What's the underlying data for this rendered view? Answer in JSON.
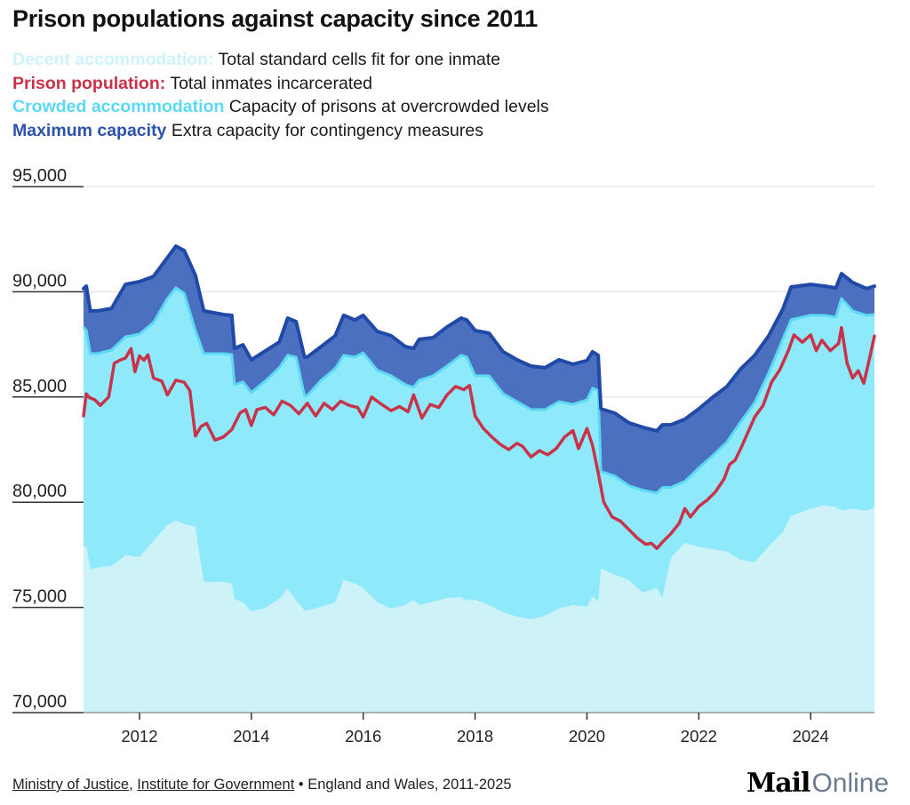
{
  "title": "Prison populations against capacity since 2011",
  "legend": [
    {
      "key": "Decent accommodation:",
      "desc": "Total standard cells fit for one inmate",
      "color": "#cdf3f8"
    },
    {
      "key": "Prison population:",
      "desc": "Total inmates incarcerated",
      "color": "#c8334a"
    },
    {
      "key": "Crowded accommodation",
      "desc": "Capacity of prisons at overcrowded levels",
      "color": "#5cd8f2"
    },
    {
      "key": "Maximum capacity",
      "desc": "Extra capacity for contingency measures",
      "color": "#2b52ad"
    }
  ],
  "footer": {
    "source1": "Ministry of Justice",
    "sep1": ", ",
    "source2": "Institute for Government",
    "note": " • England and Wales, 2011-2025"
  },
  "logo": {
    "mail": "Mail",
    "online": "Online"
  },
  "chart_data": {
    "type": "area",
    "title": "Prison populations against capacity since 2011",
    "xlabel": "",
    "ylabel": "",
    "xlim": [
      2011.0,
      2025.14
    ],
    "ylim": [
      70000,
      95000
    ],
    "yticks": [
      70000,
      75000,
      80000,
      85000,
      90000,
      95000
    ],
    "ytick_labels": [
      "70,000",
      "75,000",
      "80,000",
      "85,000",
      "90,000",
      "95,000"
    ],
    "xticks": [
      2012,
      2014,
      2016,
      2018,
      2020,
      2022,
      2024
    ],
    "xtick_labels": [
      "2012",
      "2014",
      "2016",
      "2018",
      "2020",
      "2022",
      "2024"
    ],
    "grid": true,
    "colors": {
      "decent": "#cdf3f8",
      "crowded": "#8eeafa",
      "crowded_edge": "#5cd8f2",
      "maximum": "#4a70bf",
      "maximum_edge": "#2149a8",
      "population": "#c8334a",
      "grid": "#e3e3e3",
      "axis": "#333333"
    },
    "series": [
      {
        "name": "Maximum capacity",
        "x": [
          2011.0,
          2011.05,
          2011.12,
          2011.25,
          2011.5,
          2011.75,
          2012.0,
          2012.25,
          2012.5,
          2012.65,
          2012.8,
          2013.0,
          2013.15,
          2013.5,
          2013.65,
          2013.7,
          2013.85,
          2014.0,
          2014.25,
          2014.5,
          2014.65,
          2014.8,
          2014.95,
          2015.0,
          2015.25,
          2015.5,
          2015.65,
          2015.85,
          2016.0,
          2016.25,
          2016.5,
          2016.75,
          2016.9,
          2017.0,
          2017.25,
          2017.5,
          2017.75,
          2017.85,
          2018.0,
          2018.25,
          2018.5,
          2018.75,
          2019.0,
          2019.25,
          2019.5,
          2019.75,
          2020.0,
          2020.1,
          2020.2,
          2020.25,
          2020.5,
          2020.75,
          2021.0,
          2021.25,
          2021.35,
          2021.5,
          2021.75,
          2022.0,
          2022.25,
          2022.5,
          2022.75,
          2023.0,
          2023.25,
          2023.5,
          2023.65,
          2024.0,
          2024.25,
          2024.45,
          2024.55,
          2024.75,
          2025.0,
          2025.14
        ],
        "values": [
          90150,
          90270,
          89090,
          89090,
          89210,
          90350,
          90480,
          90730,
          91620,
          92170,
          91960,
          90780,
          89090,
          88920,
          88880,
          87310,
          87480,
          86770,
          87190,
          87610,
          88750,
          88580,
          86900,
          86900,
          87400,
          87910,
          88880,
          88660,
          88880,
          88120,
          87910,
          87400,
          87310,
          87740,
          87820,
          88330,
          88750,
          88660,
          88160,
          88030,
          87150,
          86770,
          86470,
          86390,
          86770,
          86560,
          86730,
          87150,
          86980,
          84440,
          84230,
          83770,
          83560,
          83390,
          83680,
          83680,
          83940,
          84440,
          84990,
          85490,
          86340,
          86980,
          87910,
          89170,
          90230,
          90350,
          90270,
          90180,
          90860,
          90440,
          90150,
          90270
        ]
      },
      {
        "name": "Crowded accommodation",
        "x": [
          2011.0,
          2011.05,
          2011.12,
          2011.25,
          2011.5,
          2011.75,
          2012.0,
          2012.25,
          2012.5,
          2012.65,
          2012.8,
          2013.0,
          2013.15,
          2013.5,
          2013.65,
          2013.7,
          2013.85,
          2014.0,
          2014.25,
          2014.5,
          2014.65,
          2014.8,
          2014.95,
          2015.0,
          2015.25,
          2015.5,
          2015.65,
          2015.85,
          2016.0,
          2016.25,
          2016.5,
          2016.75,
          2016.9,
          2017.0,
          2017.25,
          2017.5,
          2017.75,
          2017.85,
          2018.0,
          2018.25,
          2018.5,
          2018.75,
          2019.0,
          2019.25,
          2019.5,
          2019.75,
          2020.0,
          2020.1,
          2020.2,
          2020.25,
          2020.5,
          2020.75,
          2021.0,
          2021.25,
          2021.35,
          2021.5,
          2021.75,
          2022.0,
          2022.25,
          2022.5,
          2022.75,
          2023.0,
          2023.25,
          2023.5,
          2023.65,
          2024.0,
          2024.25,
          2024.45,
          2024.55,
          2024.75,
          2025.0,
          2025.14
        ],
        "values": [
          88330,
          88160,
          87060,
          87060,
          87230,
          87860,
          87990,
          88540,
          89680,
          90190,
          89930,
          88160,
          87060,
          87060,
          87020,
          85580,
          85720,
          85210,
          85760,
          86390,
          86980,
          86900,
          85070,
          85070,
          85800,
          86350,
          86980,
          86900,
          87100,
          86270,
          86010,
          85590,
          85460,
          85800,
          86010,
          86480,
          86980,
          86900,
          86010,
          86010,
          85160,
          84780,
          84400,
          84400,
          84780,
          84650,
          84860,
          85420,
          85290,
          81460,
          81240,
          80780,
          80570,
          80440,
          80700,
          80700,
          80990,
          81630,
          82220,
          82850,
          83820,
          84740,
          86140,
          87740,
          88670,
          88880,
          88880,
          88800,
          89680,
          89090,
          88880,
          88920
        ]
      },
      {
        "name": "Decent accommodation",
        "x": [
          2011.0,
          2011.05,
          2011.12,
          2011.25,
          2011.5,
          2011.75,
          2012.0,
          2012.25,
          2012.5,
          2012.65,
          2012.8,
          2013.0,
          2013.15,
          2013.5,
          2013.65,
          2013.7,
          2013.85,
          2014.0,
          2014.25,
          2014.5,
          2014.65,
          2014.8,
          2014.95,
          2015.0,
          2015.25,
          2015.5,
          2015.65,
          2015.85,
          2016.0,
          2016.25,
          2016.5,
          2016.75,
          2016.9,
          2017.0,
          2017.25,
          2017.5,
          2017.75,
          2017.85,
          2018.0,
          2018.25,
          2018.5,
          2018.75,
          2019.0,
          2019.25,
          2019.5,
          2019.75,
          2020.0,
          2020.1,
          2020.2,
          2020.25,
          2020.5,
          2020.75,
          2021.0,
          2021.25,
          2021.35,
          2021.5,
          2021.75,
          2022.0,
          2022.25,
          2022.5,
          2022.75,
          2023.0,
          2023.25,
          2023.5,
          2023.65,
          2024.0,
          2024.25,
          2024.45,
          2024.55,
          2024.75,
          2025.0,
          2025.14
        ],
        "values": [
          77900,
          77900,
          76810,
          76890,
          76970,
          77480,
          77400,
          78160,
          78920,
          79130,
          78960,
          78830,
          76210,
          76210,
          76130,
          75400,
          75240,
          74810,
          74980,
          75400,
          75910,
          75320,
          74860,
          74860,
          75030,
          75240,
          76300,
          76130,
          75920,
          75240,
          74940,
          75110,
          75360,
          75110,
          75280,
          75450,
          75490,
          75330,
          75370,
          75110,
          74770,
          74560,
          74440,
          74600,
          74940,
          75110,
          75030,
          75530,
          75280,
          76850,
          76550,
          76300,
          75700,
          75920,
          75450,
          77350,
          78070,
          77870,
          77770,
          77650,
          77260,
          77140,
          77900,
          78580,
          79340,
          79690,
          79860,
          79770,
          79600,
          79690,
          79600,
          79720
        ]
      },
      {
        "name": "Prison population",
        "x": [
          2011.0,
          2011.05,
          2011.1,
          2011.2,
          2011.3,
          2011.45,
          2011.55,
          2011.65,
          2011.75,
          2011.85,
          2011.92,
          2012.0,
          2012.08,
          2012.15,
          2012.25,
          2012.4,
          2012.5,
          2012.65,
          2012.8,
          2012.9,
          2013.0,
          2013.1,
          2013.2,
          2013.35,
          2013.5,
          2013.65,
          2013.8,
          2013.9,
          2014.0,
          2014.1,
          2014.25,
          2014.4,
          2014.55,
          2014.7,
          2014.85,
          2015.0,
          2015.15,
          2015.3,
          2015.45,
          2015.6,
          2015.75,
          2015.9,
          2016.0,
          2016.15,
          2016.3,
          2016.5,
          2016.65,
          2016.8,
          2016.9,
          2017.05,
          2017.2,
          2017.35,
          2017.5,
          2017.65,
          2017.8,
          2017.9,
          2018.0,
          2018.15,
          2018.3,
          2018.45,
          2018.6,
          2018.75,
          2018.85,
          2019.0,
          2019.15,
          2019.3,
          2019.45,
          2019.6,
          2019.75,
          2019.85,
          2020.0,
          2020.1,
          2020.2,
          2020.3,
          2020.45,
          2020.6,
          2020.75,
          2020.9,
          2021.05,
          2021.15,
          2021.25,
          2021.35,
          2021.5,
          2021.65,
          2021.75,
          2021.85,
          2022.0,
          2022.15,
          2022.3,
          2022.45,
          2022.55,
          2022.65,
          2022.75,
          2022.9,
          2023.0,
          2023.15,
          2023.3,
          2023.45,
          2023.6,
          2023.7,
          2023.85,
          2024.0,
          2024.1,
          2024.2,
          2024.35,
          2024.5,
          2024.55,
          2024.65,
          2024.75,
          2024.85,
          2024.95,
          2025.05,
          2025.14
        ],
        "values": [
          84100,
          85150,
          84980,
          84870,
          84600,
          85000,
          86600,
          86750,
          86850,
          87300,
          86200,
          86950,
          86750,
          87000,
          85900,
          85750,
          85100,
          85800,
          85700,
          85300,
          83150,
          83600,
          83750,
          82950,
          83100,
          83450,
          84250,
          84400,
          83650,
          84400,
          84500,
          84150,
          84800,
          84600,
          84200,
          84700,
          84100,
          84700,
          84400,
          84800,
          84600,
          84500,
          84050,
          85000,
          84700,
          84350,
          84550,
          84300,
          85100,
          84000,
          84650,
          84500,
          85100,
          85500,
          85350,
          85550,
          84100,
          83500,
          83100,
          82750,
          82500,
          82800,
          82650,
          82150,
          82450,
          82250,
          82550,
          83100,
          83400,
          82550,
          83500,
          82700,
          81400,
          80000,
          79300,
          79100,
          78700,
          78300,
          78000,
          78050,
          77800,
          78100,
          78500,
          79000,
          79700,
          79300,
          79800,
          80100,
          80500,
          81100,
          81800,
          82000,
          82550,
          83450,
          84050,
          84600,
          85700,
          86300,
          87200,
          87950,
          87600,
          87950,
          87200,
          87700,
          87200,
          87550,
          88300,
          86600,
          85900,
          86250,
          85650,
          86800,
          87900
        ]
      }
    ]
  }
}
